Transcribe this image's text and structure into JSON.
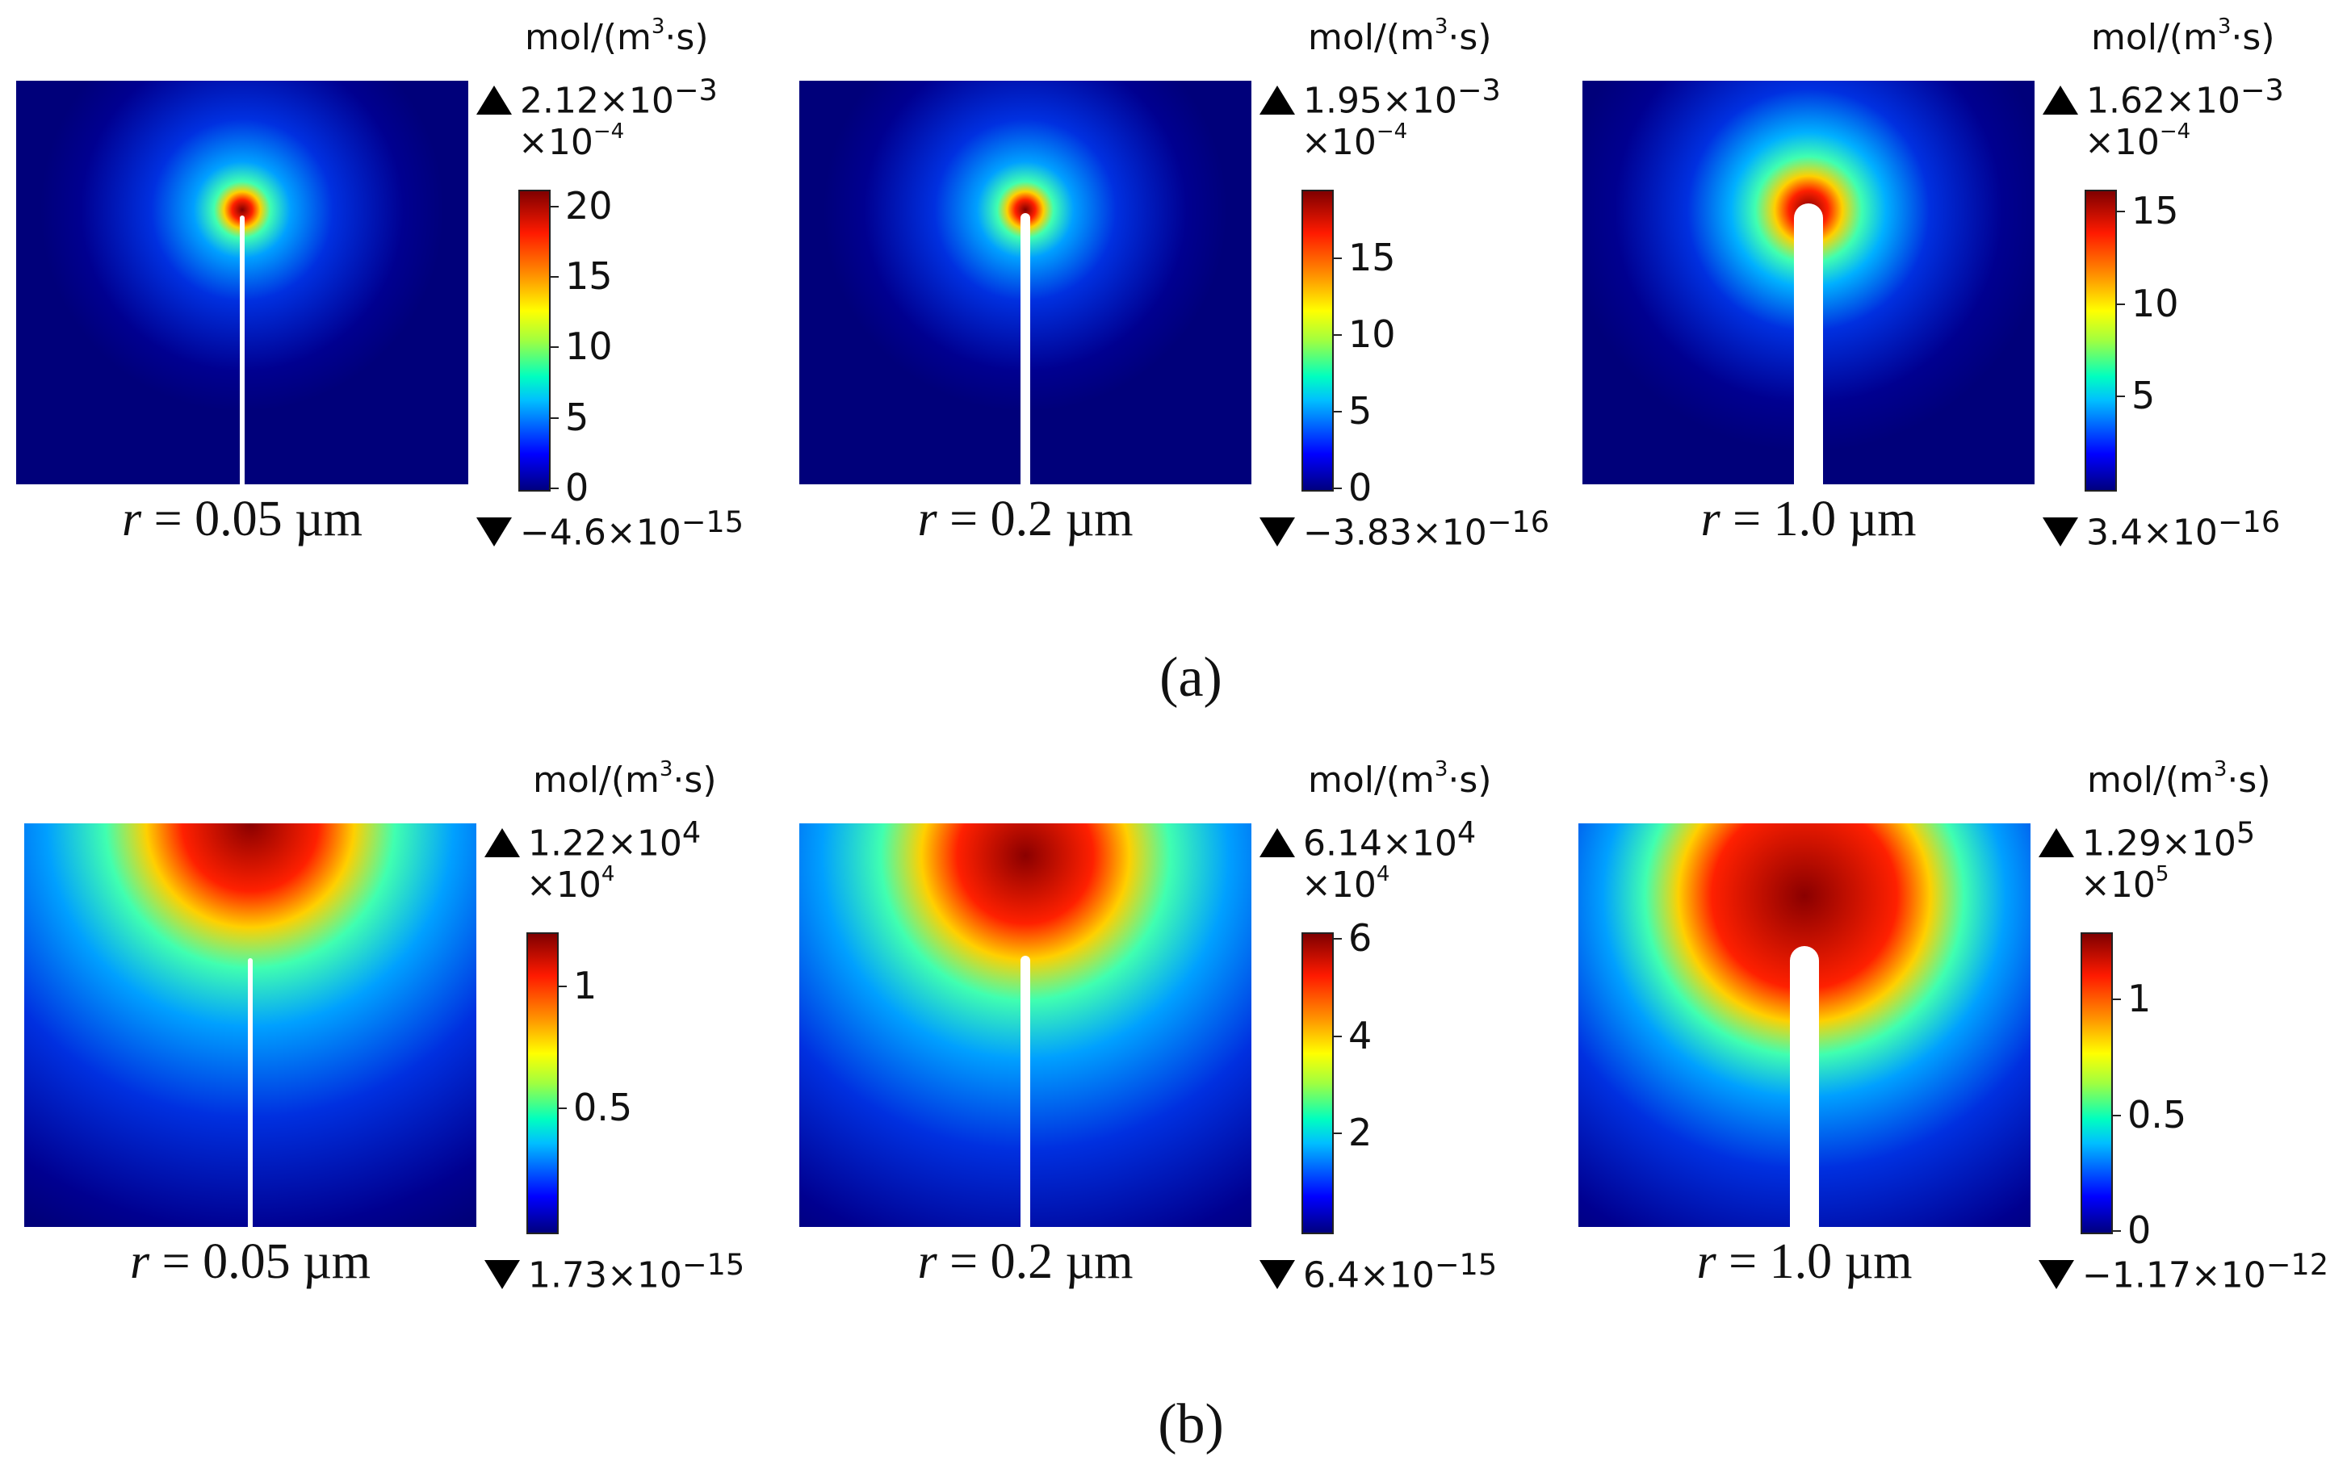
{
  "captions": {
    "a": "(a)",
    "b": "(b)"
  },
  "unit": {
    "prefix": "mol/(m",
    "exp": "3",
    "suffix": "·s)"
  },
  "row_a": [
    {
      "r_var": "r",
      "r_text": "= 0.05 µm",
      "max_mant": "2.12×10",
      "max_exp": "−3",
      "mult_base": "×10",
      "mult_exp": "−4",
      "min_mant": "−4.6×10",
      "min_exp": "−15",
      "ticks": [
        "20",
        "15",
        "10",
        "5",
        "0"
      ],
      "tick_values": [
        20,
        15,
        10,
        5,
        0
      ],
      "cbar_range": [
        0,
        21.2
      ],
      "thickness": 0.05
    },
    {
      "r_var": "r",
      "r_text": "= 0.2 µm",
      "max_mant": "1.95×10",
      "max_exp": "−3",
      "mult_base": "×10",
      "mult_exp": "−4",
      "min_mant": "−3.83×10",
      "min_exp": "−16",
      "ticks": [
        "15",
        "10",
        "5",
        "0"
      ],
      "tick_values": [
        15,
        10,
        5,
        0
      ],
      "cbar_range": [
        0,
        19.5
      ],
      "thickness": 0.2
    },
    {
      "r_var": "r",
      "r_text": "= 1.0 µm",
      "max_mant": "1.62×10",
      "max_exp": "−3",
      "mult_base": "×10",
      "mult_exp": "−4",
      "min_mant": "3.4×10",
      "min_exp": "−16",
      "ticks": [
        "15",
        "10",
        "5"
      ],
      "tick_values": [
        15,
        10,
        5
      ],
      "cbar_range": [
        0,
        16.2
      ],
      "thickness": 1.0
    }
  ],
  "row_b": [
    {
      "r_var": "r",
      "r_text": "= 0.05 µm",
      "max_mant": "1.22×10",
      "max_exp": "4",
      "mult_base": "×10",
      "mult_exp": "4",
      "min_mant": "1.73×10",
      "min_exp": "−15",
      "ticks": [
        "1",
        "0.5"
      ],
      "tick_values": [
        1,
        0.5
      ],
      "cbar_range": [
        0,
        1.22
      ],
      "thickness": 0.05
    },
    {
      "r_var": "r",
      "r_text": "= 0.2 µm",
      "max_mant": "6.14×10",
      "max_exp": "4",
      "mult_base": "×10",
      "mult_exp": "4",
      "min_mant": "6.4×10",
      "min_exp": "−15",
      "ticks": [
        "6",
        "4",
        "2"
      ],
      "tick_values": [
        6,
        4,
        2
      ],
      "cbar_range": [
        0,
        6.14
      ],
      "thickness": 0.2
    },
    {
      "r_var": "r",
      "r_text": "= 1.0 µm",
      "max_mant": "1.29×10",
      "max_exp": "5",
      "mult_base": "×10",
      "mult_exp": "5",
      "min_mant": "−1.17×10",
      "min_exp": "−12",
      "ticks": [
        "1",
        "0.5",
        "0"
      ],
      "tick_values": [
        1,
        0.5,
        0
      ],
      "cbar_range": [
        0,
        1.29
      ],
      "thickness": 1.0
    }
  ]
}
